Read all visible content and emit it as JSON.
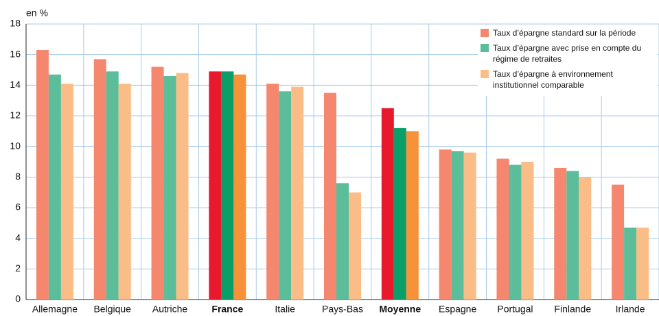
{
  "chart_data": {
    "type": "bar",
    "y_axis_label": "en %",
    "categories": [
      "Allemagne",
      "Belgique",
      "Autriche",
      "France",
      "Italie",
      "Pays-Bas",
      "Moyenne",
      "Espagne",
      "Portugal",
      "Finlande",
      "Irlande"
    ],
    "highlight": [
      3,
      6
    ],
    "series": [
      {
        "name": "Taux d’épargne standard sur la période",
        "color": "#f4876e",
        "highlight_color": "#e8192c",
        "values": [
          16.3,
          15.7,
          15.2,
          14.9,
          14.1,
          13.5,
          12.5,
          9.8,
          9.2,
          8.6,
          7.5
        ]
      },
      {
        "name": "Taux d’épargne avec prise en compte du régime de retraites",
        "color": "#5bbd9a",
        "highlight_color": "#0a9e68",
        "values": [
          14.7,
          14.9,
          14.6,
          14.9,
          13.6,
          7.6,
          11.2,
          9.7,
          8.8,
          8.4,
          4.7
        ]
      },
      {
        "name": "Taux d’épargne à environnement institutionnel comparable",
        "color": "#fbbd88",
        "highlight_color": "#f7923a",
        "values": [
          14.1,
          14.1,
          14.8,
          14.7,
          13.9,
          7.0,
          11.0,
          9.6,
          9.0,
          8.0,
          4.7
        ]
      }
    ],
    "ylim": [
      0,
      18
    ],
    "yticks": [
      0,
      2,
      4,
      6,
      8,
      10,
      12,
      14,
      16,
      18
    ],
    "grid": true
  }
}
